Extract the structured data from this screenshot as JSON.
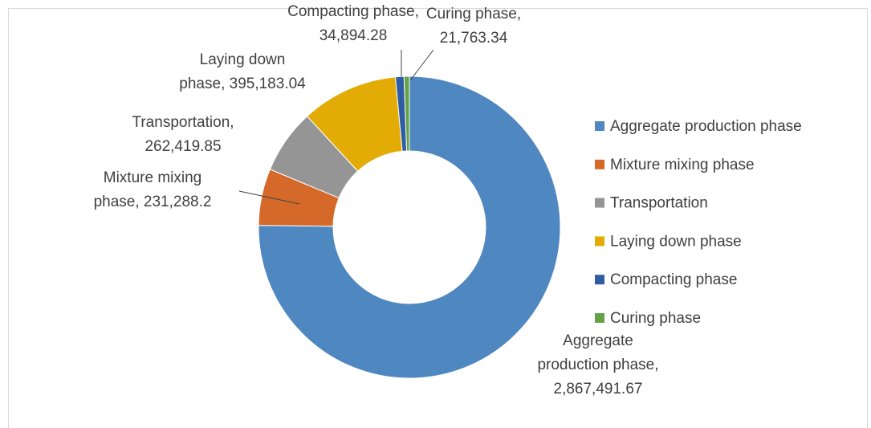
{
  "chart_data": {
    "type": "donut",
    "categories": [
      "Aggregate production phase",
      "Mixture mixing phase",
      "Transportation",
      "Laying down phase",
      "Compacting phase",
      "Curing phase"
    ],
    "values": [
      2867491.67,
      231288.2,
      262419.85,
      395183.04,
      34894.28,
      21763.34
    ],
    "value_labels": [
      "2,867,491.67",
      "231,288.2",
      "262,419.85",
      "395,183.04",
      "34,894.28",
      "21,763.34"
    ],
    "colors": [
      "#4f87c0",
      "#d5692a",
      "#959595",
      "#e3ab06",
      "#2f5ca5",
      "#65a245"
    ],
    "legend": "right"
  }
}
